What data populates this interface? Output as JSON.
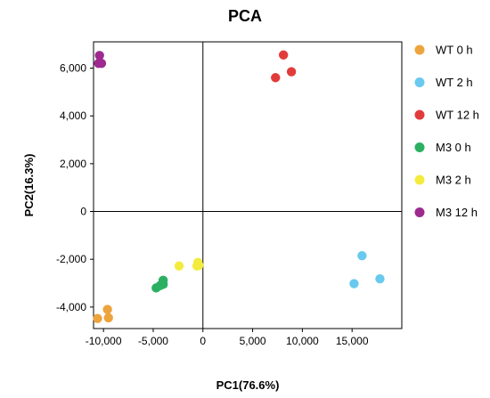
{
  "chart_data": {
    "type": "scatter",
    "title": "PCA",
    "xlabel": "PC1(76.6%)",
    "ylabel": "PC2(16.3%)",
    "xlim": [
      -11000,
      20000
    ],
    "ylim": [
      -4900,
      7100
    ],
    "x_ticks": [
      -10000,
      -5000,
      0,
      5000,
      10000,
      15000
    ],
    "x_tick_labels": [
      "-10,000",
      "-5,000",
      "0",
      "5,000",
      "10,000",
      "15,000"
    ],
    "y_ticks": [
      -4000,
      -2000,
      0,
      2000,
      4000,
      6000
    ],
    "y_tick_labels": [
      "-4,000",
      "-2,000",
      "0",
      "2,000",
      "4,000",
      "6,000"
    ],
    "grid": false,
    "zero_lines": true,
    "legend_position": "right",
    "series": [
      {
        "name": "WT 0 h",
        "color": "#EDA43D",
        "points": [
          [
            -10600,
            -4480
          ],
          [
            -9500,
            -4450
          ],
          [
            -9600,
            -4100
          ]
        ]
      },
      {
        "name": "WT 2 h",
        "color": "#69C9EE",
        "points": [
          [
            16000,
            -1850
          ],
          [
            15200,
            -3020
          ],
          [
            17800,
            -2820
          ]
        ]
      },
      {
        "name": "WT 12 h",
        "color": "#E23B3B",
        "points": [
          [
            8100,
            6550
          ],
          [
            7300,
            5600
          ],
          [
            8900,
            5850
          ]
        ]
      },
      {
        "name": "M3 0 h",
        "color": "#2BB062",
        "points": [
          [
            -4700,
            -3200
          ],
          [
            -4300,
            -3100
          ],
          [
            -4000,
            -3050
          ],
          [
            -4000,
            -2880
          ]
        ]
      },
      {
        "name": "M3 2 h",
        "color": "#F3EC3E",
        "points": [
          [
            -2400,
            -2280
          ],
          [
            -500,
            -2130
          ],
          [
            -400,
            -2250
          ],
          [
            -600,
            -2280
          ]
        ]
      },
      {
        "name": "M3 12 h",
        "color": "#9E2A90",
        "points": [
          [
            -10400,
            6530
          ],
          [
            -10500,
            6200
          ],
          [
            -10200,
            6200
          ]
        ]
      }
    ]
  }
}
